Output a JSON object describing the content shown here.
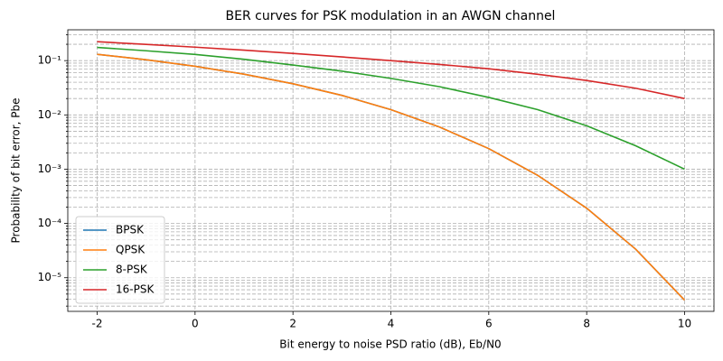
{
  "chart_data": {
    "type": "line",
    "title": "BER curves for PSK modulation in an AWGN channel",
    "x_label": "Bit energy to noise PSD ratio (dB), Eb/N0",
    "y_label": "Probability of bit error, Pbe",
    "x": [
      -2,
      -1,
      0,
      1,
      2,
      3,
      4,
      5,
      6,
      7,
      8,
      9,
      10
    ],
    "series": [
      {
        "name": "BPSK",
        "color": "#1f77b4",
        "values": [
          0.1306,
          0.1038,
          0.0786,
          0.0563,
          0.0375,
          0.0229,
          0.0125,
          0.00595,
          0.00239,
          0.00077,
          0.000191,
          3.36e-05,
          3.87e-06
        ]
      },
      {
        "name": "QPSK",
        "color": "#ff7f0e",
        "values": [
          0.1306,
          0.1038,
          0.0786,
          0.0563,
          0.0375,
          0.0229,
          0.0125,
          0.00595,
          0.00239,
          0.00077,
          0.000191,
          3.36e-05,
          3.87e-06
        ]
      },
      {
        "name": "8-PSK",
        "color": "#2ca02c",
        "values": [
          0.175,
          0.152,
          0.13,
          0.106,
          0.083,
          0.064,
          0.047,
          0.033,
          0.021,
          0.0125,
          0.0063,
          0.0027,
          0.001
        ]
      },
      {
        "name": "16-PSK",
        "color": "#d62728",
        "values": [
          0.223,
          0.199,
          0.177,
          0.156,
          0.136,
          0.117,
          0.1,
          0.085,
          0.0709,
          0.056,
          0.0431,
          0.031,
          0.02
        ]
      }
    ],
    "xlim": [
      -2.6,
      10.6
    ],
    "xticks": [
      -2,
      0,
      2,
      4,
      6,
      8,
      10
    ],
    "ylim": [
      2.4e-06,
      0.37
    ],
    "yscale": "log",
    "yticks": [
      {
        "value": 1e-05,
        "label": "10⁻⁵"
      },
      {
        "value": 0.0001,
        "label": "10⁻⁴"
      },
      {
        "value": 0.001,
        "label": "10⁻³"
      },
      {
        "value": 0.01,
        "label": "10⁻²"
      },
      {
        "value": 0.1,
        "label": "10⁻¹"
      }
    ],
    "yminorticks": [
      3e-06,
      4e-06,
      5e-06,
      6e-06,
      7e-06,
      8e-06,
      9e-06,
      2e-05,
      3e-05,
      4e-05,
      5e-05,
      6e-05,
      7e-05,
      8e-05,
      9e-05,
      0.0002,
      0.0003,
      0.0004,
      0.0005,
      0.0006,
      0.0007,
      0.0008,
      0.0009,
      0.002,
      0.003,
      0.004,
      0.005,
      0.006,
      0.007,
      0.008,
      0.009,
      0.02,
      0.03,
      0.04,
      0.05,
      0.06,
      0.07,
      0.08,
      0.09,
      0.2,
      0.3
    ],
    "grid": true,
    "legend": "lower left"
  }
}
